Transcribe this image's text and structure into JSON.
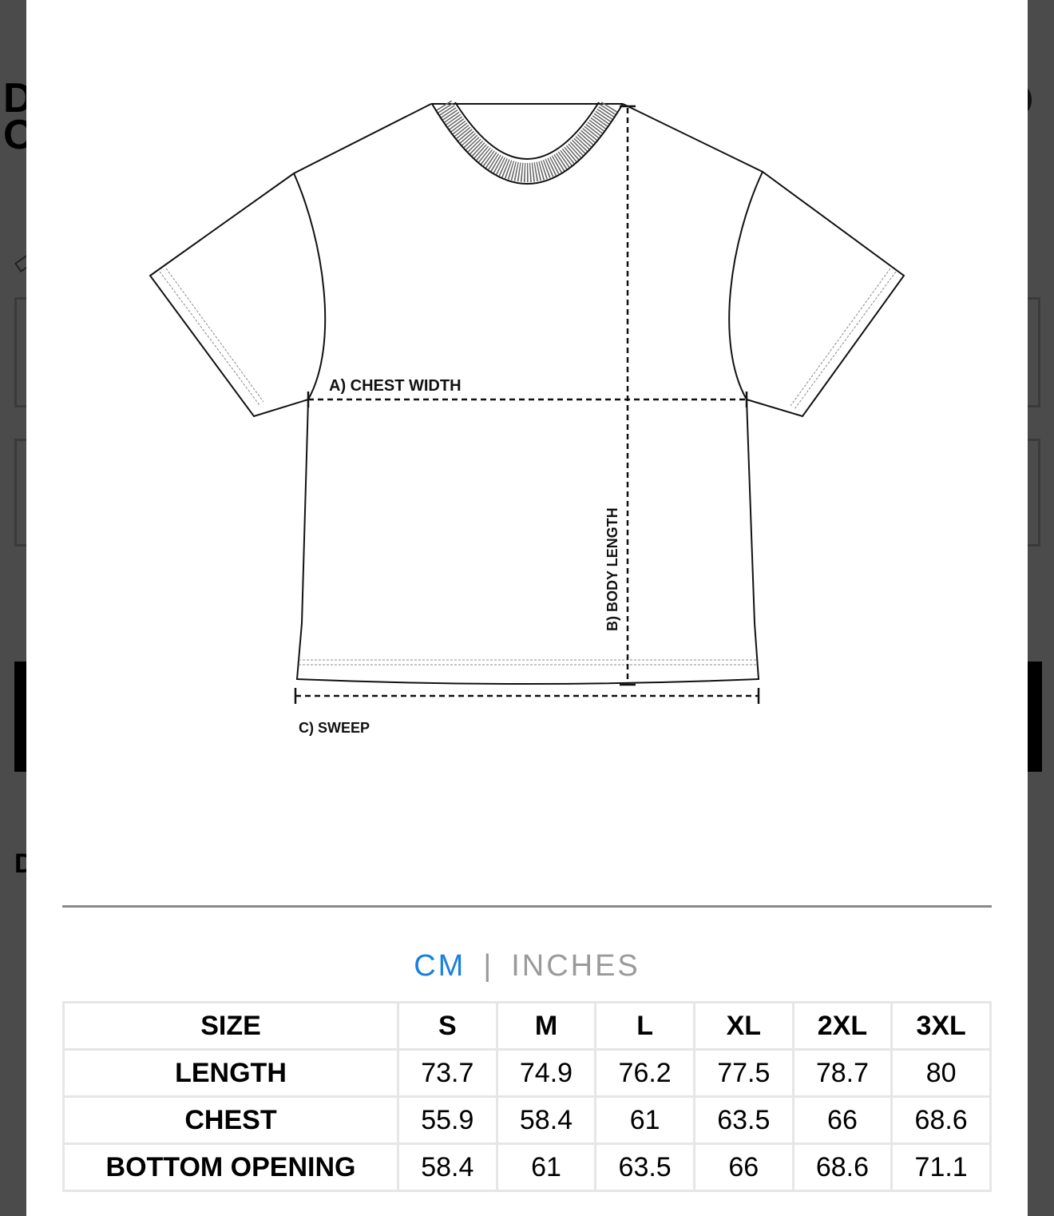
{
  "background": {
    "letters": [
      "D",
      "O"
    ],
    "lower_letter": "D"
  },
  "diagram": {
    "chest_label": "A) CHEST WIDTH",
    "length_label": "B) BODY LENGTH",
    "sweep_label": "C) SWEEP"
  },
  "units": {
    "cm": "CM",
    "separator": "|",
    "inches": "INCHES",
    "selected": "CM",
    "accent_color": "#1a7fe0"
  },
  "size_table": {
    "header": [
      "SIZE",
      "S",
      "M",
      "L",
      "XL",
      "2XL",
      "3XL"
    ],
    "rows": [
      [
        "LENGTH",
        "73.7",
        "74.9",
        "76.2",
        "77.5",
        "78.7",
        "80"
      ],
      [
        "CHEST",
        "55.9",
        "58.4",
        "61",
        "63.5",
        "66",
        "68.6"
      ],
      [
        "BOTTOM OPENING",
        "58.4",
        "61",
        "63.5",
        "66",
        "68.6",
        "71.1"
      ]
    ]
  }
}
